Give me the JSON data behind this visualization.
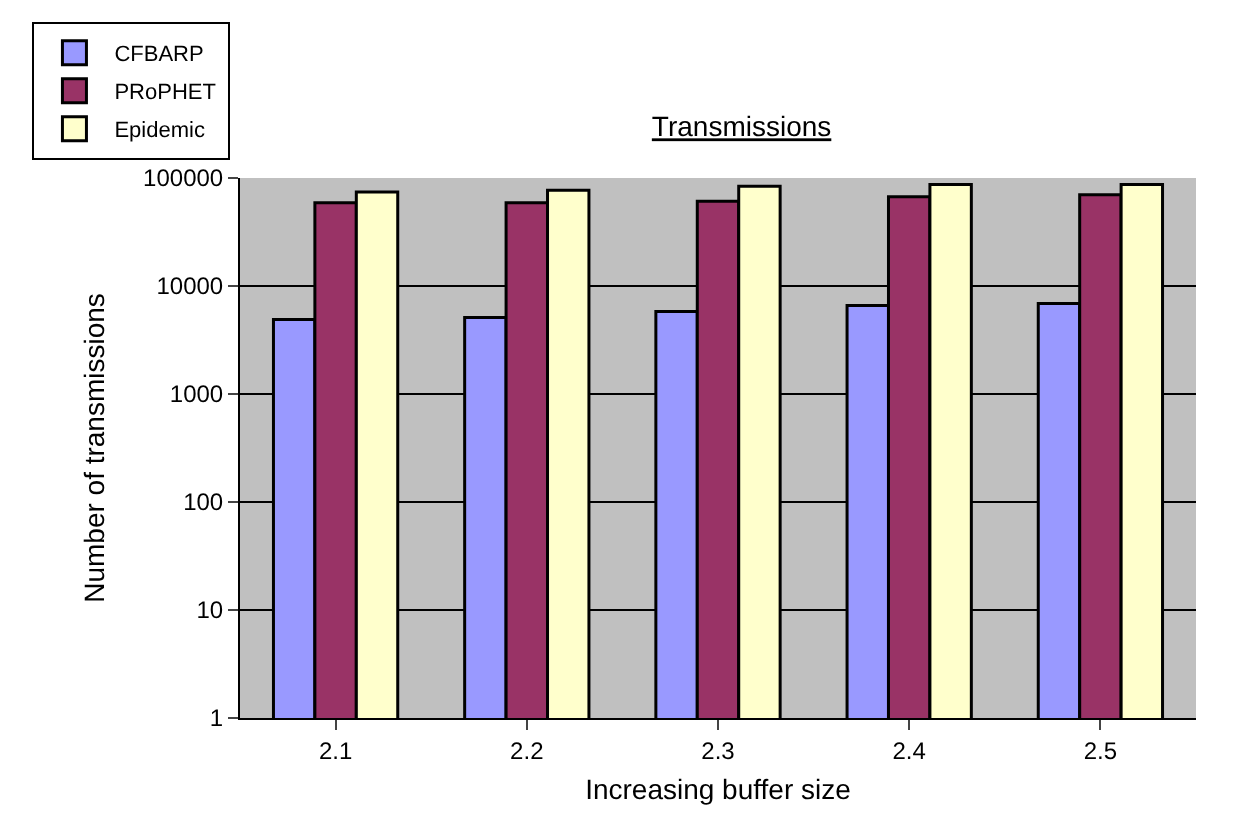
{
  "chart_data": {
    "type": "bar",
    "title": "Transmissions",
    "xlabel": "Increasing buffer size",
    "ylabel": "Number of transmissions",
    "categories": [
      "2.1",
      "2.2",
      "2.3",
      "2.4",
      "2.5"
    ],
    "series": [
      {
        "name": "CFBARP",
        "color": "#9999ff",
        "values": [
          4900,
          5100,
          5800,
          6600,
          6900
        ]
      },
      {
        "name": "PRoPHET",
        "color": "#993366",
        "values": [
          59000,
          59000,
          61000,
          67000,
          70000
        ]
      },
      {
        "name": "Epidemic",
        "color": "#ffffcc",
        "values": [
          74000,
          77000,
          84000,
          87000,
          87000
        ]
      }
    ],
    "log": true,
    "ylim": [
      1,
      100000
    ],
    "yticks": [
      1,
      10,
      100,
      1000,
      10000,
      100000
    ],
    "grid": "y",
    "legend": "top left"
  }
}
